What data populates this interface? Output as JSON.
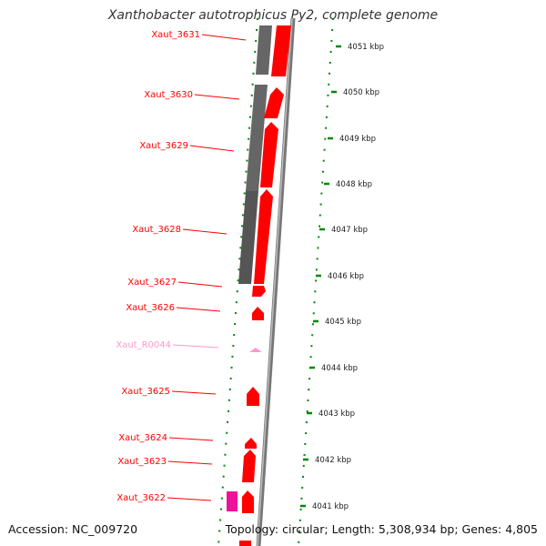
{
  "title": "Xanthobacter autotrophicus Py2, complete genome",
  "footer": {
    "accession": "Accession: NC_009720",
    "summary": "Topology: circular; Length: 5,308,934 bp; Genes: 4,805"
  },
  "colors": {
    "cds": "#ff0000",
    "rna": "#ff99cc",
    "rna_feature": "#ee1199",
    "backbone": "#777777",
    "ticks": "#008800"
  },
  "genes": [
    {
      "label": "Xaut_3631",
      "type": "cds"
    },
    {
      "label": "Xaut_3630",
      "type": "cds"
    },
    {
      "label": "Xaut_3629",
      "type": "cds"
    },
    {
      "label": "Xaut_3628",
      "type": "cds"
    },
    {
      "label": "Xaut_3627",
      "type": "cds"
    },
    {
      "label": "Xaut_3626",
      "type": "cds"
    },
    {
      "label": "Xaut_R0044",
      "type": "rna"
    },
    {
      "label": "Xaut_3625",
      "type": "cds"
    },
    {
      "label": "Xaut_3624",
      "type": "cds"
    },
    {
      "label": "Xaut_3623",
      "type": "cds"
    },
    {
      "label": "Xaut_3622",
      "type": "cds"
    }
  ],
  "scale": {
    "unit": "kbp",
    "ticks": [
      "4051 kbp",
      "4050 kbp",
      "4049 kbp",
      "4048 kbp",
      "4047 kbp",
      "4046 kbp",
      "4045 kbp",
      "4044 kbp",
      "4043 kbp",
      "4042 kbp",
      "4041 kbp"
    ]
  }
}
